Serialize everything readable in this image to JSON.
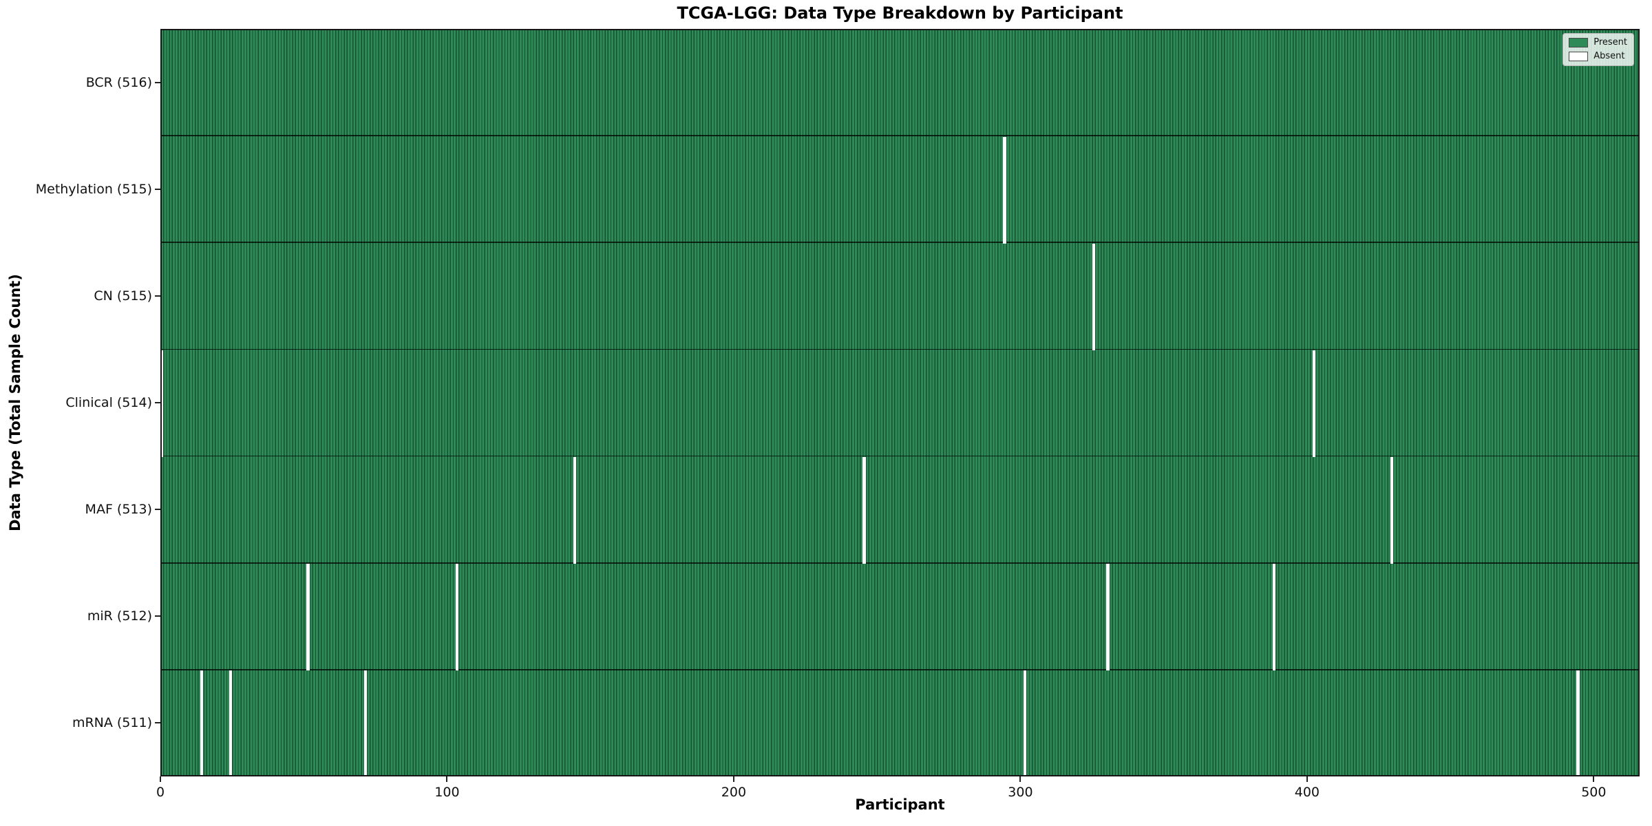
{
  "title": "TCGA-LGG: Data Type Breakdown by Participant",
  "xlabel": "Participant",
  "ylabel": "Data Type (Total Sample Count)",
  "legend": {
    "present_label": "Present",
    "absent_label": "Absent"
  },
  "colors": {
    "present": "#2e8b57",
    "absent": "#ffffff",
    "cell_edge": "rgba(0,22,10,0.5)",
    "spine": "#151515"
  },
  "chart_data": {
    "type": "heatmap",
    "title": "TCGA-LGG: Data Type Breakdown by Participant",
    "xlabel": "Participant",
    "ylabel": "Data Type (Total Sample Count)",
    "xlim": [
      0,
      516
    ],
    "x_ticks": [
      0,
      100,
      200,
      300,
      400,
      500
    ],
    "total_participants": 516,
    "grid": false,
    "legend_position": "upper right",
    "legend_entries": [
      {
        "label": "Present",
        "color": "#2e8b57"
      },
      {
        "label": "Absent",
        "color": "#ffffff"
      }
    ],
    "rows": [
      {
        "label": "BCR (516)",
        "data_type": "BCR",
        "present_count": 516,
        "absent_participants": []
      },
      {
        "label": "Methylation (515)",
        "data_type": "Methylation",
        "present_count": 515,
        "absent_participants": [
          294
        ]
      },
      {
        "label": "CN (515)",
        "data_type": "CN",
        "present_count": 515,
        "absent_participants": [
          325
        ]
      },
      {
        "label": "Clinical (514)",
        "data_type": "Clinical",
        "present_count": 514,
        "absent_participants": [
          0,
          402
        ]
      },
      {
        "label": "MAF (513)",
        "data_type": "MAF",
        "present_count": 513,
        "absent_participants": [
          144,
          245,
          429
        ]
      },
      {
        "label": "miR (512)",
        "data_type": "miR",
        "present_count": 512,
        "absent_participants": [
          51,
          103,
          330,
          388
        ]
      },
      {
        "label": "mRNA (511)",
        "data_type": "mRNA",
        "present_count": 511,
        "absent_participants": [
          14,
          24,
          71,
          301,
          494
        ]
      }
    ]
  }
}
